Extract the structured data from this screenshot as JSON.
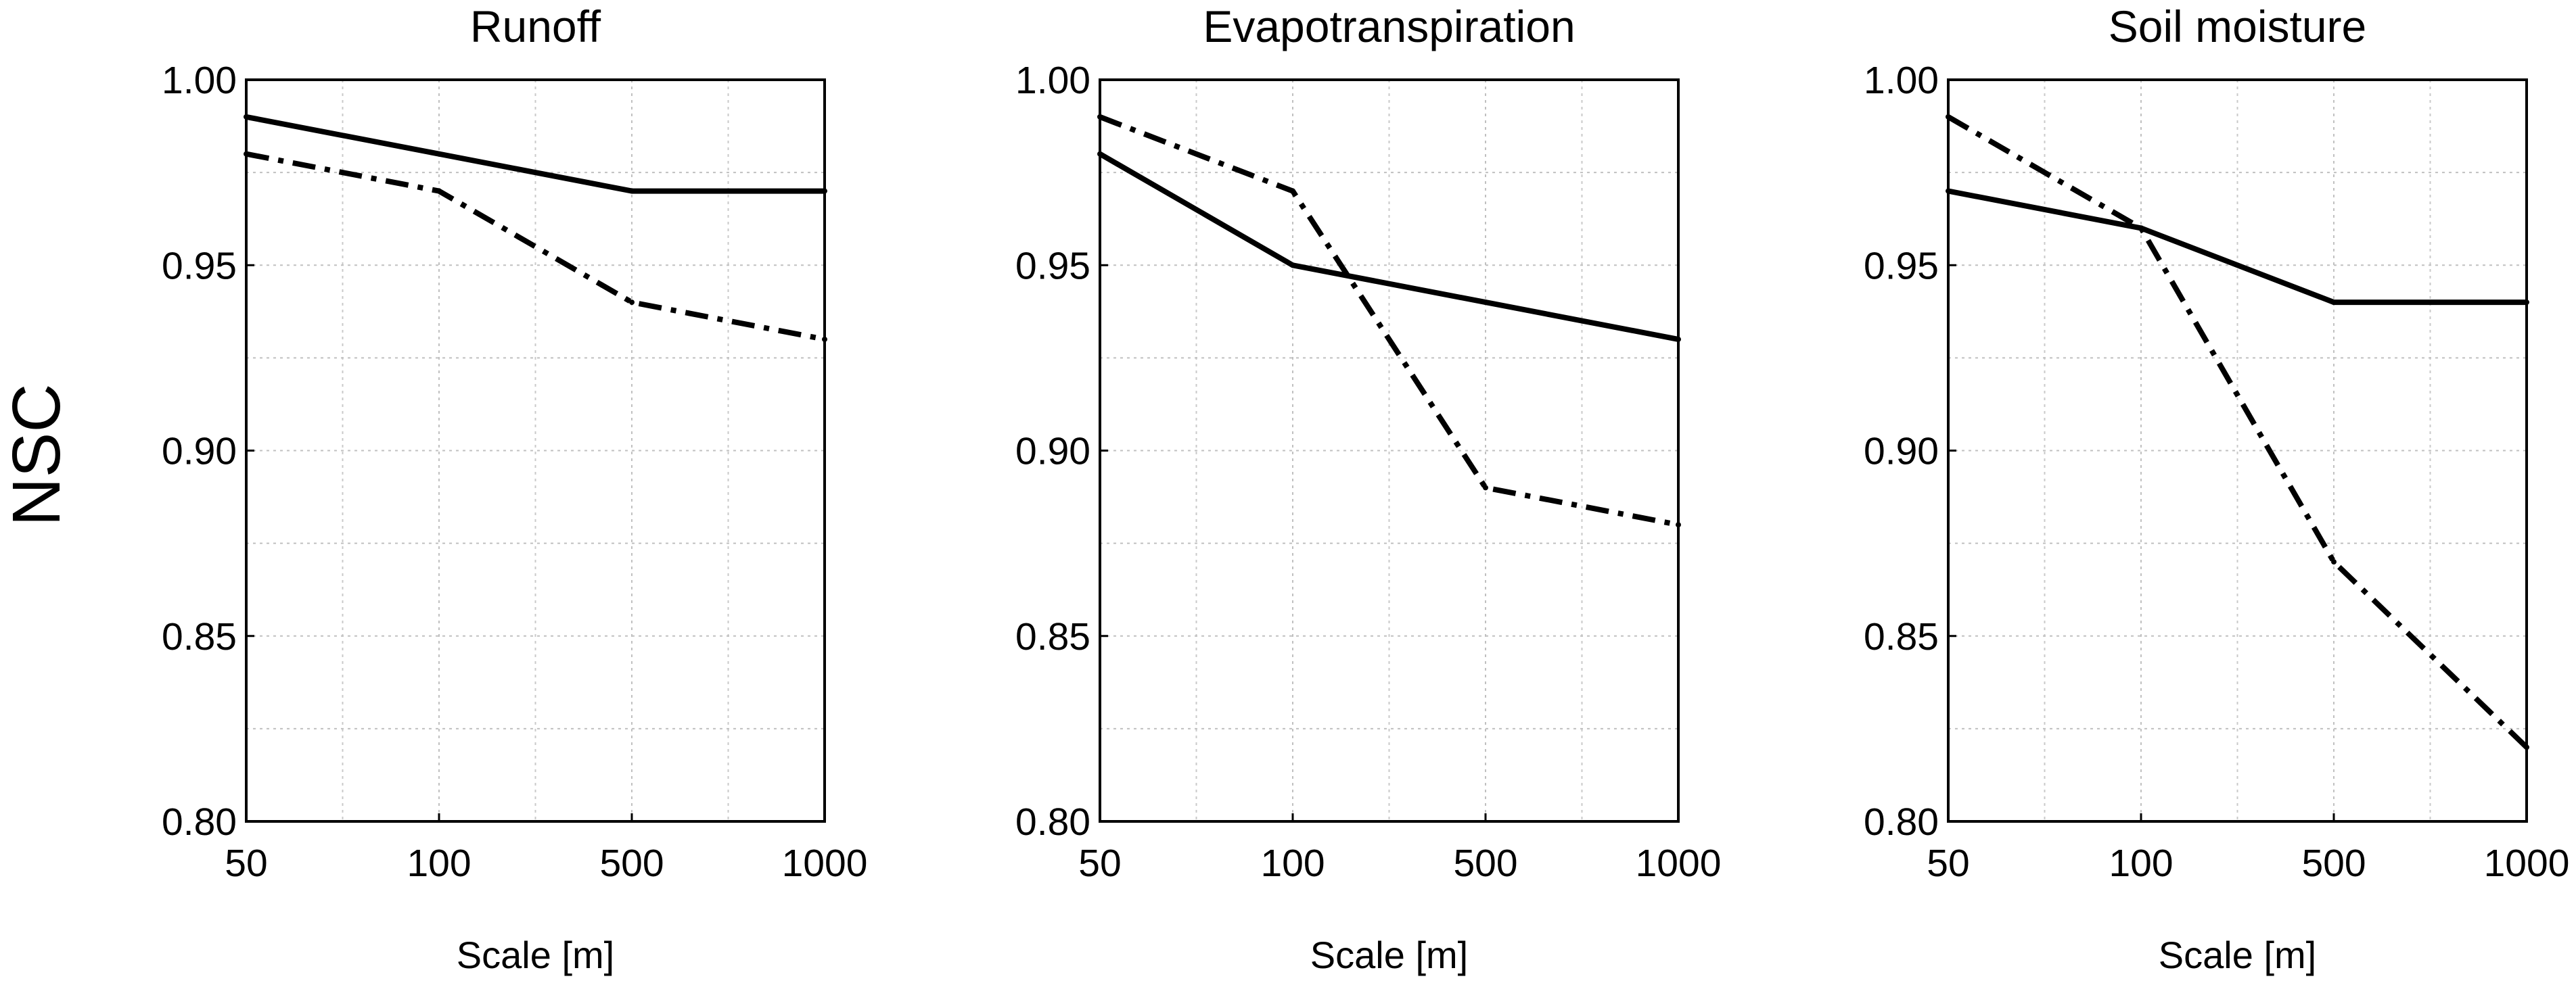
{
  "figure": {
    "ylabel": "NSC"
  },
  "chart_data": [
    {
      "type": "line",
      "title": "Runoff",
      "xlabel": "Scale [m]",
      "ylabel": "NSC",
      "categories": [
        "50",
        "100",
        "500",
        "1000"
      ],
      "ylim": [
        0.8,
        1.0
      ],
      "yticks": [
        "0.80",
        "0.85",
        "0.90",
        "0.95",
        "1.00"
      ],
      "grid": true,
      "series": [
        {
          "name": "solid",
          "style": "solid",
          "values": [
            0.99,
            0.98,
            0.97,
            0.97
          ]
        },
        {
          "name": "dash-dot",
          "style": "dashdot",
          "values": [
            0.98,
            0.97,
            0.94,
            0.93
          ]
        }
      ]
    },
    {
      "type": "line",
      "title": "Evapotranspiration",
      "xlabel": "Scale [m]",
      "ylabel": "NSC",
      "categories": [
        "50",
        "100",
        "500",
        "1000"
      ],
      "ylim": [
        0.8,
        1.0
      ],
      "yticks": [
        "0.80",
        "0.85",
        "0.90",
        "0.95",
        "1.00"
      ],
      "grid": true,
      "series": [
        {
          "name": "solid",
          "style": "solid",
          "values": [
            0.98,
            0.95,
            0.94,
            0.93
          ]
        },
        {
          "name": "dash-dot",
          "style": "dashdot",
          "values": [
            0.99,
            0.97,
            0.89,
            0.88
          ]
        }
      ]
    },
    {
      "type": "line",
      "title": "Soil moisture",
      "xlabel": "Scale [m]",
      "ylabel": "NSC",
      "categories": [
        "50",
        "100",
        "500",
        "1000"
      ],
      "ylim": [
        0.8,
        1.0
      ],
      "yticks": [
        "0.80",
        "0.85",
        "0.90",
        "0.95",
        "1.00"
      ],
      "grid": true,
      "series": [
        {
          "name": "solid",
          "style": "solid",
          "values": [
            0.97,
            0.96,
            0.94,
            0.94
          ]
        },
        {
          "name": "dash-dot",
          "style": "dashdot",
          "values": [
            0.99,
            0.96,
            0.87,
            0.82
          ]
        }
      ]
    }
  ]
}
